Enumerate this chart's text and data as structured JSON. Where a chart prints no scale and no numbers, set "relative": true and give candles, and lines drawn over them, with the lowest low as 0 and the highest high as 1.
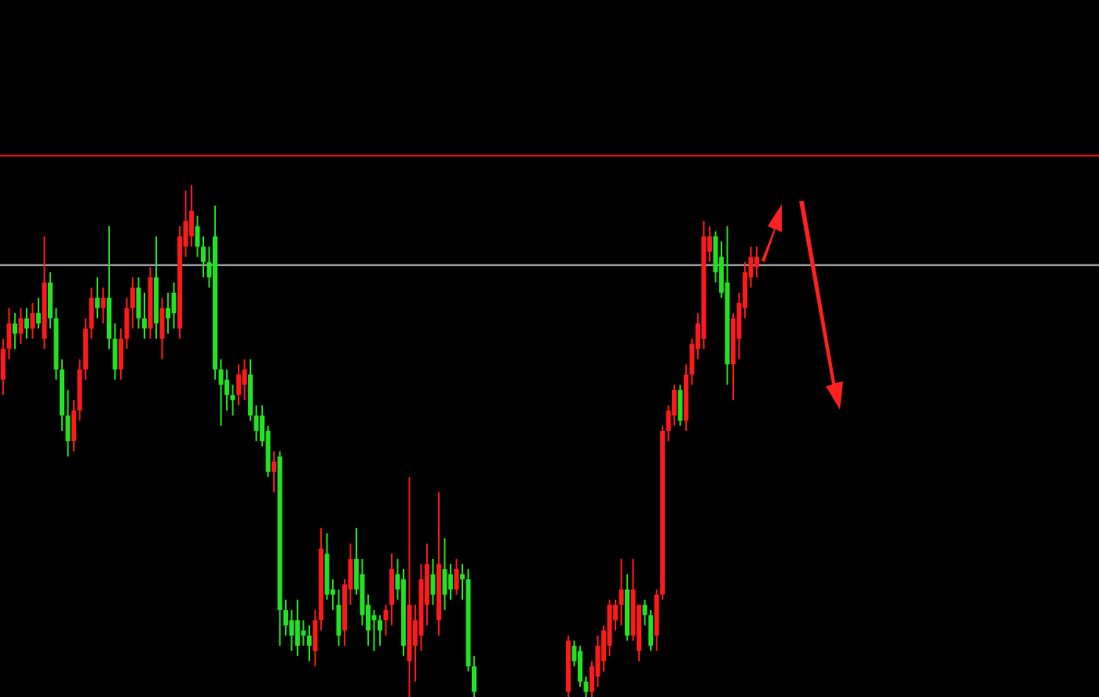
{
  "chart_data": {
    "type": "candlestick",
    "relative": true,
    "categories": [
      null,
      null,
      null,
      null,
      null,
      null,
      null,
      null,
      null,
      null,
      null,
      null,
      null,
      null,
      null,
      null,
      null,
      null,
      null,
      null,
      null,
      null,
      null,
      null,
      null,
      null,
      null,
      null,
      null,
      null,
      null,
      null,
      null,
      null,
      null,
      null,
      null,
      null,
      null,
      null,
      null,
      null,
      null,
      null,
      null,
      null,
      null,
      null,
      null,
      null,
      null,
      null,
      null,
      null,
      null,
      null,
      null,
      null,
      null,
      null,
      null,
      null,
      null,
      null,
      null,
      null,
      null,
      null,
      null,
      null,
      null,
      null,
      null,
      null,
      null,
      null,
      null,
      null,
      null,
      null,
      null,
      null,
      null,
      null,
      null,
      null,
      null,
      null,
      null,
      null,
      null,
      null,
      null,
      null,
      null,
      null,
      null,
      null,
      null,
      null,
      null,
      null,
      null,
      null,
      null,
      null,
      null,
      null,
      null,
      null,
      null,
      null,
      null,
      null,
      null,
      null,
      null,
      null,
      null,
      null,
      null,
      null,
      null,
      null,
      null,
      null,
      null,
      null,
      null
    ],
    "ohlc": [
      [
        0.62,
        0.7,
        0.59,
        0.68
      ],
      [
        0.68,
        0.76,
        0.66,
        0.73
      ],
      [
        0.73,
        0.75,
        0.68,
        0.71
      ],
      [
        0.71,
        0.76,
        0.69,
        0.74
      ],
      [
        0.74,
        0.76,
        0.7,
        0.72
      ],
      [
        0.72,
        0.77,
        0.7,
        0.75
      ],
      [
        0.75,
        0.78,
        0.72,
        0.73
      ],
      [
        0.7,
        0.9,
        0.68,
        0.81
      ],
      [
        0.81,
        0.83,
        0.72,
        0.74
      ],
      [
        0.74,
        0.76,
        0.62,
        0.64
      ],
      [
        0.64,
        0.66,
        0.52,
        0.55
      ],
      [
        0.55,
        0.6,
        0.47,
        0.5
      ],
      [
        0.5,
        0.58,
        0.48,
        0.56
      ],
      [
        0.56,
        0.66,
        0.54,
        0.64
      ],
      [
        0.64,
        0.74,
        0.62,
        0.72
      ],
      [
        0.72,
        0.8,
        0.7,
        0.78
      ],
      [
        0.78,
        0.82,
        0.74,
        0.76
      ],
      [
        0.76,
        0.8,
        0.73,
        0.78
      ],
      [
        0.78,
        0.92,
        0.68,
        0.7
      ],
      [
        0.7,
        0.73,
        0.62,
        0.64
      ],
      [
        0.64,
        0.72,
        0.62,
        0.7
      ],
      [
        0.7,
        0.78,
        0.68,
        0.76
      ],
      [
        0.76,
        0.82,
        0.72,
        0.8
      ],
      [
        0.8,
        0.82,
        0.72,
        0.74
      ],
      [
        0.74,
        0.79,
        0.7,
        0.72
      ],
      [
        0.72,
        0.84,
        0.7,
        0.82
      ],
      [
        0.82,
        0.9,
        0.7,
        0.73
      ],
      [
        0.7,
        0.78,
        0.66,
        0.76
      ],
      [
        0.76,
        0.79,
        0.71,
        0.74
      ],
      [
        0.79,
        0.81,
        0.72,
        0.75
      ],
      [
        0.72,
        0.92,
        0.7,
        0.9
      ],
      [
        0.88,
        0.99,
        0.86,
        0.93
      ],
      [
        0.9,
        1.0,
        0.88,
        0.95
      ],
      [
        0.92,
        0.94,
        0.86,
        0.88
      ],
      [
        0.88,
        0.9,
        0.82,
        0.85
      ],
      [
        0.85,
        0.88,
        0.8,
        0.82
      ],
      [
        0.9,
        0.96,
        0.62,
        0.64
      ],
      [
        0.64,
        0.66,
        0.53,
        0.61
      ],
      [
        0.62,
        0.64,
        0.56,
        0.59
      ],
      [
        0.59,
        0.61,
        0.55,
        0.58
      ],
      [
        0.59,
        0.65,
        0.57,
        0.63
      ],
      [
        0.61,
        0.66,
        0.58,
        0.64
      ],
      [
        0.63,
        0.66,
        0.54,
        0.55
      ],
      [
        0.55,
        0.57,
        0.5,
        0.52
      ],
      [
        0.55,
        0.57,
        0.49,
        0.5
      ],
      [
        0.52,
        0.53,
        0.43,
        0.44
      ],
      [
        0.44,
        0.48,
        0.4,
        0.46
      ],
      [
        0.47,
        0.48,
        0.1,
        0.17
      ],
      [
        0.17,
        0.19,
        0.12,
        0.14
      ],
      [
        0.15,
        0.17,
        0.09,
        0.12
      ],
      [
        0.15,
        0.19,
        0.08,
        0.1
      ],
      [
        0.13,
        0.15,
        0.1,
        0.12
      ],
      [
        0.12,
        0.14,
        0.07,
        0.1
      ],
      [
        0.09,
        0.17,
        0.06,
        0.15
      ],
      [
        0.15,
        0.33,
        0.13,
        0.29
      ],
      [
        0.28,
        0.32,
        0.19,
        0.2
      ],
      [
        0.21,
        0.23,
        0.17,
        0.2
      ],
      [
        0.18,
        0.21,
        0.1,
        0.12
      ],
      [
        0.13,
        0.23,
        0.1,
        0.22
      ],
      [
        0.21,
        0.3,
        0.18,
        0.27
      ],
      [
        0.27,
        0.33,
        0.2,
        0.21
      ],
      [
        0.24,
        0.27,
        0.14,
        0.16
      ],
      [
        0.18,
        0.2,
        0.1,
        0.13
      ],
      [
        0.16,
        0.17,
        0.09,
        0.15
      ],
      [
        0.15,
        0.16,
        0.1,
        0.13
      ],
      [
        0.15,
        0.18,
        0.12,
        0.17
      ],
      [
        0.18,
        0.28,
        0.14,
        0.25
      ],
      [
        0.24,
        0.27,
        0.19,
        0.21
      ],
      [
        0.23,
        0.25,
        0.08,
        0.1
      ],
      [
        0.07,
        0.43,
        0.0,
        0.18
      ],
      [
        0.1,
        0.18,
        0.03,
        0.15
      ],
      [
        0.12,
        0.26,
        0.09,
        0.23
      ],
      [
        0.18,
        0.3,
        0.14,
        0.26
      ],
      [
        0.24,
        0.27,
        0.18,
        0.2
      ],
      [
        0.15,
        0.4,
        0.12,
        0.26
      ],
      [
        0.25,
        0.31,
        0.17,
        0.2
      ],
      [
        0.24,
        0.26,
        0.19,
        0.21
      ],
      [
        0.21,
        0.27,
        0.2,
        0.25
      ],
      [
        0.24,
        0.26,
        0.19,
        0.23
      ],
      [
        0.23,
        0.25,
        0.05,
        0.06
      ],
      [
        0.06,
        0.08,
        0.0,
        0.01
      ],
      null,
      null,
      null,
      null,
      null,
      null,
      null,
      null,
      null,
      null,
      null,
      null,
      null,
      null,
      null,
      [
        0.01,
        0.12,
        0.0,
        0.11
      ],
      [
        0.1,
        0.11,
        0.06,
        0.07
      ],
      [
        0.09,
        0.1,
        0.02,
        0.03
      ],
      [
        0.03,
        0.04,
        0.0,
        0.01
      ],
      [
        0.01,
        0.07,
        0.0,
        0.06
      ],
      [
        0.04,
        0.12,
        0.02,
        0.1
      ],
      [
        0.07,
        0.14,
        0.05,
        0.13
      ],
      [
        0.1,
        0.19,
        0.08,
        0.18
      ],
      [
        0.15,
        0.19,
        0.13,
        0.18
      ],
      [
        0.18,
        0.27,
        0.14,
        0.21
      ],
      [
        0.21,
        0.24,
        0.11,
        0.12
      ],
      [
        0.12,
        0.27,
        0.11,
        0.21
      ],
      [
        0.09,
        0.18,
        0.07,
        0.18
      ],
      [
        0.18,
        0.19,
        0.14,
        0.16
      ],
      [
        0.16,
        0.17,
        0.09,
        0.1
      ],
      [
        0.12,
        0.21,
        0.09,
        0.2
      ],
      [
        0.2,
        0.53,
        0.19,
        0.52
      ],
      [
        0.52,
        0.57,
        0.5,
        0.56
      ],
      [
        0.55,
        0.61,
        0.53,
        0.6
      ],
      [
        0.6,
        0.61,
        0.53,
        0.54
      ],
      [
        0.54,
        0.65,
        0.52,
        0.63
      ],
      [
        0.63,
        0.7,
        0.61,
        0.69
      ],
      [
        0.68,
        0.75,
        0.66,
        0.73
      ],
      [
        0.7,
        0.93,
        0.68,
        0.9
      ],
      [
        0.87,
        0.92,
        0.85,
        0.9
      ],
      [
        0.9,
        0.91,
        0.81,
        0.83
      ],
      [
        0.86,
        0.89,
        0.78,
        0.79
      ],
      [
        0.81,
        0.92,
        0.61,
        0.65
      ],
      [
        0.65,
        0.75,
        0.58,
        0.74
      ],
      [
        0.7,
        0.79,
        0.66,
        0.77
      ],
      [
        0.76,
        0.85,
        0.74,
        0.83
      ],
      [
        0.82,
        0.88,
        0.8,
        0.86
      ],
      [
        0.84,
        0.88,
        0.82,
        0.86
      ]
    ],
    "colors": [
      "#ff1a1a",
      "#ff1a1a",
      "#22e022",
      "#ff1a1a",
      "#22e022",
      "#ff1a1a",
      "#22e022",
      "#ff1a1a",
      "#22e022",
      "#22e022",
      "#22e022",
      "#22e022",
      "#ff1a1a",
      "#ff1a1a",
      "#ff1a1a",
      "#ff1a1a",
      "#22e022",
      "#ff1a1a",
      "#22e022",
      "#22e022",
      "#ff1a1a",
      "#ff1a1a",
      "#ff1a1a",
      "#22e022",
      "#22e022",
      "#ff1a1a",
      "#22e022",
      "#ff1a1a",
      "#22e022",
      "#22e022",
      "#ff1a1a",
      "#ff1a1a",
      "#ff1a1a",
      "#22e022",
      "#22e022",
      "#22e022",
      "#22e022",
      "#22e022",
      "#22e022",
      "#22e022",
      "#ff1a1a",
      "#ff1a1a",
      "#22e022",
      "#22e022",
      "#22e022",
      "#22e022",
      "#ff1a1a",
      "#22e022",
      "#22e022",
      "#22e022",
      "#22e022",
      "#22e022",
      "#22e022",
      "#ff1a1a",
      "#ff1a1a",
      "#22e022",
      "#22e022",
      "#22e022",
      "#ff1a1a",
      "#ff1a1a",
      "#22e022",
      "#22e022",
      "#22e022",
      "#22e022",
      "#22e022",
      "#ff1a1a",
      "#ff1a1a",
      "#22e022",
      "#22e022",
      "#ff1a1a",
      "#ff1a1a",
      "#ff1a1a",
      "#ff1a1a",
      "#22e022",
      "#ff1a1a",
      "#22e022",
      "#22e022",
      "#ff1a1a",
      "#22e022",
      "#22e022",
      "#22e022",
      null,
      null,
      null,
      null,
      null,
      null,
      null,
      null,
      null,
      null,
      null,
      null,
      null,
      null,
      null,
      "#ff1a1a",
      "#22e022",
      "#22e022",
      "#22e022",
      "#ff1a1a",
      "#ff1a1a",
      "#ff1a1a",
      "#ff1a1a",
      "#ff1a1a",
      "#ff1a1a",
      "#22e022",
      "#ff1a1a",
      "#ff1a1a",
      "#22e022",
      "#22e022",
      "#ff1a1a",
      "#ff1a1a",
      "#ff1a1a",
      "#ff1a1a",
      "#22e022",
      "#ff1a1a",
      "#ff1a1a",
      "#ff1a1a",
      "#ff1a1a",
      "#ff1a1a",
      "#22e022",
      "#22e022",
      "#22e022",
      "#ff1a1a",
      "#ff1a1a",
      "#ff1a1a",
      "#ff1a1a",
      "#ff1a1a"
    ],
    "ref_lines": [
      {
        "axis": "y",
        "value": 1.058,
        "color": "#c8141e"
      },
      {
        "axis": "y",
        "value": 0.844,
        "color": "#9a9aa8"
      }
    ]
  }
}
